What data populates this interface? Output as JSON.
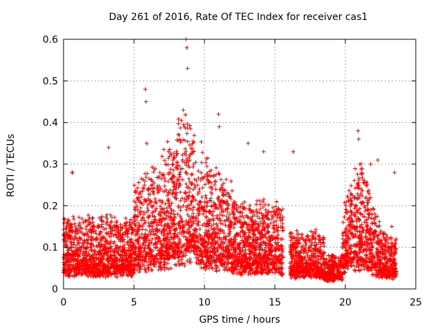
{
  "chart_data": {
    "type": "scatter",
    "title": "Day 261 of 2016, Rate Of TEC Index for receiver cas1",
    "xlabel": "GPS time / hours",
    "ylabel": "ROTI / TECUs",
    "xlim": [
      0,
      25
    ],
    "ylim": [
      0,
      0.6
    ],
    "x_ticks": [
      "0",
      "5",
      "10",
      "15",
      "20",
      "25"
    ],
    "y_ticks": [
      "0",
      "0.1",
      "0.2",
      "0.3",
      "0.4",
      "0.5",
      "0.6"
    ],
    "grid": true,
    "marker": "+",
    "series": [
      {
        "name": "cas1",
        "color": "#ff0000",
        "x": [
          0.05,
          0.2,
          0.4,
          0.55,
          0.7,
          0.9,
          1.1,
          1.3,
          1.5,
          1.7,
          1.9,
          2.1,
          2.3,
          2.5,
          2.7,
          2.9,
          3.1,
          3.3,
          3.5,
          3.7,
          3.9,
          4.1,
          4.3,
          4.5,
          4.7,
          4.9,
          5.1,
          5.3,
          5.5,
          5.7,
          5.9,
          6.1,
          6.3,
          6.5,
          6.7,
          6.9,
          7.1,
          7.3,
          7.5,
          7.7,
          7.9,
          8.1,
          8.3,
          8.5,
          8.7,
          8.9,
          9.1,
          9.3,
          9.5,
          9.7,
          9.9,
          10.1,
          10.3,
          10.5,
          10.7,
          10.9,
          11.1,
          11.3,
          11.5,
          11.7,
          11.9,
          12.1,
          12.3,
          12.5,
          12.7,
          12.9,
          13.1,
          13.3,
          13.5,
          13.7,
          13.9,
          14.1,
          14.3,
          14.5,
          14.7,
          14.9,
          15.1,
          15.3,
          15.5,
          16.1,
          16.3,
          16.5,
          16.7,
          16.9,
          17.1,
          17.3,
          17.5,
          17.7,
          17.9,
          18.1,
          18.3,
          18.5,
          18.7,
          18.9,
          19.1,
          19.3,
          19.5,
          19.7,
          19.9,
          20.1,
          20.3,
          20.5,
          20.7,
          20.9,
          21.1,
          21.3,
          21.5,
          21.7,
          21.9,
          22.1,
          22.3,
          22.5,
          22.7,
          22.9,
          23.1,
          23.3,
          23.5,
          23.6,
          0.6,
          0.65,
          3.2,
          5.8,
          5.85,
          5.9,
          8.2,
          8.5,
          8.7,
          8.75,
          8.8,
          11.0,
          11.05,
          13.1,
          14.2,
          16.3,
          20.9,
          20.95,
          21.8,
          22.3,
          23.5
        ],
        "y": [
          0.05,
          0.08,
          0.12,
          0.1,
          0.07,
          0.09,
          0.11,
          0.06,
          0.13,
          0.08,
          0.1,
          0.07,
          0.12,
          0.09,
          0.15,
          0.06,
          0.11,
          0.08,
          0.14,
          0.07,
          0.1,
          0.12,
          0.09,
          0.16,
          0.08,
          0.11,
          0.13,
          0.07,
          0.1,
          0.18,
          0.12,
          0.09,
          0.15,
          0.11,
          0.14,
          0.08,
          0.17,
          0.12,
          0.2,
          0.15,
          0.22,
          0.18,
          0.25,
          0.2,
          0.28,
          0.16,
          0.21,
          0.14,
          0.19,
          0.12,
          0.18,
          0.15,
          0.11,
          0.2,
          0.13,
          0.17,
          0.1,
          0.14,
          0.12,
          0.09,
          0.16,
          0.08,
          0.13,
          0.11,
          0.15,
          0.07,
          0.12,
          0.09,
          0.14,
          0.08,
          0.1,
          0.06,
          0.11,
          0.08,
          0.09,
          0.05,
          0.07,
          0.04,
          0.06,
          0.05,
          0.08,
          0.1,
          0.07,
          0.06,
          0.09,
          0.05,
          0.07,
          0.04,
          0.06,
          0.05,
          0.03,
          0.04,
          0.02,
          0.03,
          0.02,
          0.03,
          0.04,
          0.06,
          0.05,
          0.08,
          0.12,
          0.15,
          0.2,
          0.25,
          0.18,
          0.14,
          0.16,
          0.12,
          0.1,
          0.14,
          0.08,
          0.11,
          0.09,
          0.13,
          0.07,
          0.15,
          0.1,
          0.12,
          0.28,
          0.28,
          0.34,
          0.48,
          0.45,
          0.35,
          0.37,
          0.43,
          0.6,
          0.58,
          0.53,
          0.42,
          0.39,
          0.35,
          0.33,
          0.33,
          0.38,
          0.36,
          0.3,
          0.31,
          0.28
        ]
      }
    ]
  }
}
